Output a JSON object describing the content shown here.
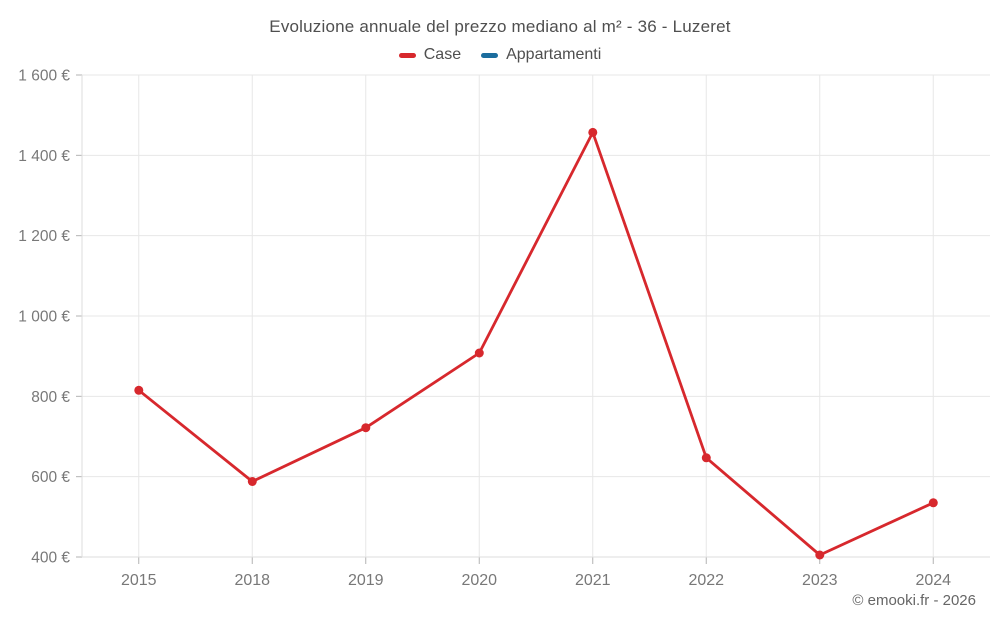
{
  "chart_data": {
    "type": "line",
    "title": "Evoluzione annuale del prezzo mediano al m² - 36 - Luzeret",
    "categories": [
      "2015",
      "2018",
      "2019",
      "2020",
      "2021",
      "2022",
      "2023",
      "2024"
    ],
    "series": [
      {
        "name": "Case",
        "color": "#d7282d",
        "values": [
          815,
          588,
          722,
          908,
          1457,
          647,
          405,
          535
        ]
      },
      {
        "name": "Appartamenti",
        "color": "#1b6d9e",
        "values": []
      }
    ],
    "ylim": [
      400,
      1600
    ],
    "yticks": {
      "values": [
        400,
        600,
        800,
        1000,
        1200,
        1400,
        1600
      ],
      "labels": [
        "400 €",
        "600 €",
        "800 €",
        "1 000 €",
        "1 200 €",
        "1 400 €",
        "1 600 €"
      ]
    },
    "grid": "on",
    "legend_position": "top",
    "unit": "€"
  },
  "footer": {
    "text": "© emooki.fr - 2026"
  }
}
